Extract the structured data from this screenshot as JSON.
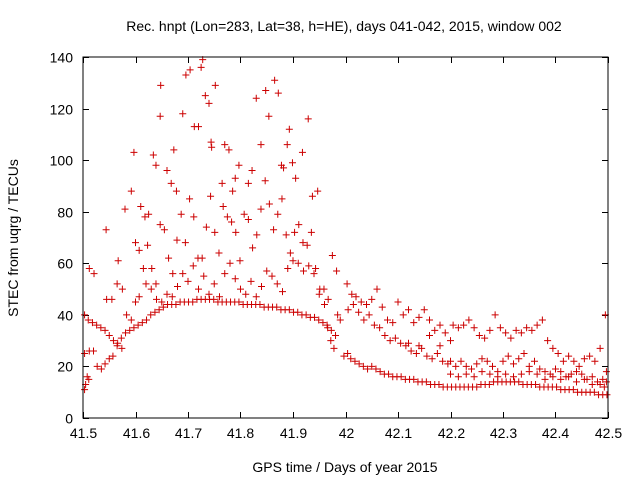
{
  "chart_data": {
    "type": "scatter",
    "title": "Rec. hnpt (Lon=283, Lat=38, h=HE), days 041-042, 2015, window 002",
    "xlabel": "GPS time / Days of year 2015",
    "ylabel": "STEC from uqrg / TECUs",
    "xlim": [
      41.5,
      42.5
    ],
    "ylim": [
      0,
      140
    ],
    "xticks": [
      41.5,
      41.6,
      41.7,
      41.8,
      41.9,
      42,
      42.1,
      42.2,
      42.3,
      42.4,
      42.5
    ],
    "xtick_labels": [
      "41.5",
      "41.6",
      "41.7",
      "41.8",
      "41.9",
      "42",
      "42.1",
      "42.2",
      "42.3",
      "42.4",
      "42.5"
    ],
    "yticks": [
      0,
      20,
      40,
      60,
      80,
      100,
      120,
      140
    ],
    "ytick_labels": [
      "0",
      "20",
      "40",
      "60",
      "80",
      "100",
      "120",
      "140"
    ],
    "grid": false,
    "legend": "none",
    "marker": "+",
    "color": "#cc0000",
    "points": [
      [
        41.503,
        11
      ],
      [
        41.505,
        13
      ],
      [
        41.508,
        16
      ],
      [
        41.511,
        15
      ],
      [
        41.503,
        25
      ],
      [
        41.512,
        26
      ],
      [
        41.52,
        26
      ],
      [
        41.527,
        20
      ],
      [
        41.535,
        19
      ],
      [
        41.542,
        21
      ],
      [
        41.55,
        23
      ],
      [
        41.557,
        24
      ],
      [
        41.565,
        28
      ],
      [
        41.573,
        31
      ],
      [
        41.581,
        33
      ],
      [
        41.589,
        34
      ],
      [
        41.597,
        35
      ],
      [
        41.605,
        36
      ],
      [
        41.613,
        37
      ],
      [
        41.621,
        38
      ],
      [
        41.629,
        40
      ],
      [
        41.637,
        41
      ],
      [
        41.645,
        42
      ],
      [
        41.653,
        43
      ],
      [
        41.661,
        44
      ],
      [
        41.669,
        44
      ],
      [
        41.677,
        44
      ],
      [
        41.685,
        45
      ],
      [
        41.693,
        45
      ],
      [
        41.701,
        45
      ],
      [
        41.709,
        45
      ],
      [
        41.717,
        46
      ],
      [
        41.725,
        46
      ],
      [
        41.733,
        46
      ],
      [
        41.741,
        46
      ],
      [
        41.749,
        46
      ],
      [
        41.757,
        45
      ],
      [
        41.765,
        45
      ],
      [
        41.773,
        45
      ],
      [
        41.781,
        45
      ],
      [
        41.789,
        45
      ],
      [
        41.797,
        45
      ],
      [
        41.805,
        44
      ],
      [
        41.813,
        44
      ],
      [
        41.821,
        44
      ],
      [
        41.829,
        44
      ],
      [
        41.837,
        44
      ],
      [
        41.845,
        43
      ],
      [
        41.853,
        43
      ],
      [
        41.861,
        43
      ],
      [
        41.869,
        43
      ],
      [
        41.877,
        42
      ],
      [
        41.885,
        42
      ],
      [
        41.893,
        42
      ],
      [
        41.901,
        41
      ],
      [
        41.909,
        41
      ],
      [
        41.917,
        40
      ],
      [
        41.925,
        40
      ],
      [
        41.933,
        39
      ],
      [
        41.941,
        39
      ],
      [
        41.949,
        38
      ],
      [
        41.957,
        37
      ],
      [
        41.965,
        36
      ],
      [
        41.973,
        34
      ],
      [
        41.981,
        32
      ],
      [
        41.503,
        40
      ],
      [
        41.51,
        38
      ],
      [
        41.518,
        37
      ],
      [
        41.526,
        36
      ],
      [
        41.534,
        35
      ],
      [
        41.542,
        34
      ],
      [
        41.55,
        32
      ],
      [
        41.558,
        30
      ],
      [
        41.566,
        29
      ],
      [
        41.574,
        27
      ],
      [
        41.512,
        58
      ],
      [
        41.521,
        56
      ],
      [
        41.545,
        46
      ],
      [
        41.555,
        46
      ],
      [
        41.565,
        52
      ],
      [
        41.575,
        50
      ],
      [
        41.583,
        40
      ],
      [
        41.592,
        38
      ],
      [
        41.6,
        45
      ],
      [
        41.607,
        47
      ],
      [
        41.544,
        73
      ],
      [
        41.567,
        61
      ],
      [
        41.58,
        81
      ],
      [
        41.592,
        88
      ],
      [
        41.597,
        103
      ],
      [
        41.61,
        82
      ],
      [
        41.618,
        78
      ],
      [
        41.625,
        79
      ],
      [
        41.634,
        102
      ],
      [
        41.639,
        98
      ],
      [
        41.647,
        117
      ],
      [
        41.648,
        129
      ],
      [
        41.66,
        96
      ],
      [
        41.668,
        91
      ],
      [
        41.673,
        104
      ],
      [
        41.678,
        88
      ],
      [
        41.69,
        118
      ],
      [
        41.696,
        133
      ],
      [
        41.704,
        135
      ],
      [
        41.712,
        113
      ],
      [
        41.72,
        113
      ],
      [
        41.725,
        136
      ],
      [
        41.728,
        139
      ],
      [
        41.733,
        125
      ],
      [
        41.74,
        122
      ],
      [
        41.744,
        107
      ],
      [
        41.745,
        105
      ],
      [
        41.752,
        129
      ],
      [
        41.765,
        91
      ],
      [
        41.77,
        106
      ],
      [
        41.778,
        104
      ],
      [
        41.785,
        88
      ],
      [
        41.79,
        93
      ],
      [
        41.797,
        98
      ],
      [
        41.815,
        91
      ],
      [
        41.822,
        96
      ],
      [
        41.83,
        124
      ],
      [
        41.839,
        106
      ],
      [
        41.848,
        127
      ],
      [
        41.854,
        117
      ],
      [
        41.865,
        131
      ],
      [
        41.872,
        126
      ],
      [
        41.878,
        98
      ],
      [
        41.882,
        97
      ],
      [
        41.889,
        106
      ],
      [
        41.893,
        112
      ],
      [
        41.899,
        99
      ],
      [
        41.905,
        93
      ],
      [
        41.918,
        103
      ],
      [
        41.929,
        116
      ],
      [
        41.937,
        86
      ],
      [
        41.947,
        88
      ],
      [
        41.6,
        68
      ],
      [
        41.607,
        65
      ],
      [
        41.615,
        58
      ],
      [
        41.623,
        67
      ],
      [
        41.631,
        58
      ],
      [
        41.639,
        52
      ],
      [
        41.647,
        75
      ],
      [
        41.655,
        73
      ],
      [
        41.663,
        62
      ],
      [
        41.671,
        56
      ],
      [
        41.679,
        69
      ],
      [
        41.687,
        79
      ],
      [
        41.695,
        68
      ],
      [
        41.703,
        85
      ],
      [
        41.711,
        78
      ],
      [
        41.719,
        62
      ],
      [
        41.727,
        62
      ],
      [
        41.735,
        74
      ],
      [
        41.743,
        86
      ],
      [
        41.751,
        72
      ],
      [
        41.759,
        64
      ],
      [
        41.767,
        82
      ],
      [
        41.775,
        78
      ],
      [
        41.783,
        76
      ],
      [
        41.791,
        72
      ],
      [
        41.799,
        61
      ],
      [
        41.807,
        79
      ],
      [
        41.815,
        77
      ],
      [
        41.823,
        66
      ],
      [
        41.831,
        71
      ],
      [
        41.839,
        81
      ],
      [
        41.847,
        92
      ],
      [
        41.855,
        83
      ],
      [
        41.863,
        73
      ],
      [
        41.871,
        79
      ],
      [
        41.879,
        85
      ],
      [
        41.887,
        71
      ],
      [
        41.895,
        64
      ],
      [
        41.903,
        72
      ],
      [
        41.911,
        75
      ],
      [
        41.919,
        68
      ],
      [
        41.927,
        67
      ],
      [
        41.935,
        72
      ],
      [
        41.943,
        58
      ],
      [
        41.951,
        50
      ],
      [
        41.959,
        50
      ],
      [
        41.967,
        46
      ],
      [
        41.975,
        63
      ],
      [
        41.983,
        57
      ],
      [
        41.62,
        52
      ],
      [
        41.63,
        50
      ],
      [
        41.64,
        46
      ],
      [
        41.65,
        45
      ],
      [
        41.66,
        48
      ],
      [
        41.67,
        47
      ],
      [
        41.68,
        51
      ],
      [
        41.69,
        56
      ],
      [
        41.7,
        53
      ],
      [
        41.71,
        59
      ],
      [
        41.72,
        50
      ],
      [
        41.73,
        55
      ],
      [
        41.74,
        48
      ],
      [
        41.75,
        52
      ],
      [
        41.76,
        47
      ],
      [
        41.77,
        56
      ],
      [
        41.78,
        60
      ],
      [
        41.79,
        54
      ],
      [
        41.8,
        50
      ],
      [
        41.81,
        48
      ],
      [
        41.82,
        53
      ],
      [
        41.83,
        47
      ],
      [
        41.84,
        51
      ],
      [
        41.85,
        57
      ],
      [
        41.86,
        55
      ],
      [
        41.87,
        52
      ],
      [
        41.88,
        49
      ],
      [
        41.89,
        58
      ],
      [
        41.9,
        61
      ],
      [
        41.91,
        60
      ],
      [
        41.92,
        57
      ],
      [
        41.93,
        59
      ],
      [
        41.94,
        56
      ],
      [
        41.95,
        48
      ],
      [
        41.96,
        44
      ],
      [
        41.966,
        35
      ],
      [
        41.972,
        30
      ],
      [
        41.978,
        27
      ],
      [
        41.985,
        40
      ],
      [
        41.99,
        38
      ],
      [
        41.997,
        24
      ],
      [
        42.004,
        25
      ],
      [
        42.01,
        23
      ],
      [
        42.018,
        22
      ],
      [
        42.026,
        21
      ],
      [
        42.034,
        20
      ],
      [
        42.042,
        19
      ],
      [
        42.05,
        20
      ],
      [
        42.058,
        19
      ],
      [
        42.066,
        18
      ],
      [
        42.074,
        17
      ],
      [
        42.082,
        17
      ],
      [
        42.09,
        16
      ],
      [
        42.098,
        16
      ],
      [
        42.106,
        16
      ],
      [
        42.114,
        15
      ],
      [
        42.122,
        15
      ],
      [
        42.13,
        15
      ],
      [
        42.138,
        14
      ],
      [
        42.146,
        14
      ],
      [
        42.154,
        14
      ],
      [
        42.162,
        13
      ],
      [
        42.17,
        13
      ],
      [
        42.178,
        13
      ],
      [
        42.186,
        12
      ],
      [
        42.194,
        12
      ],
      [
        42.202,
        12
      ],
      [
        42.21,
        12
      ],
      [
        42.218,
        12
      ],
      [
        42.226,
        12
      ],
      [
        42.234,
        12
      ],
      [
        42.242,
        12
      ],
      [
        42.25,
        12
      ],
      [
        42.258,
        13
      ],
      [
        42.266,
        13
      ],
      [
        42.274,
        13
      ],
      [
        42.282,
        14
      ],
      [
        42.29,
        14
      ],
      [
        42.298,
        14
      ],
      [
        42.306,
        14
      ],
      [
        42.314,
        14
      ],
      [
        42.322,
        14
      ],
      [
        42.33,
        14
      ],
      [
        42.338,
        13
      ],
      [
        42.346,
        13
      ],
      [
        42.354,
        13
      ],
      [
        42.362,
        13
      ],
      [
        42.37,
        12
      ],
      [
        42.378,
        12
      ],
      [
        42.386,
        12
      ],
      [
        42.394,
        12
      ],
      [
        42.402,
        12
      ],
      [
        42.41,
        11
      ],
      [
        42.418,
        11
      ],
      [
        42.426,
        11
      ],
      [
        42.434,
        11
      ],
      [
        42.442,
        10
      ],
      [
        42.45,
        10
      ],
      [
        42.458,
        10
      ],
      [
        42.466,
        10
      ],
      [
        42.474,
        10
      ],
      [
        42.482,
        9
      ],
      [
        42.49,
        9
      ],
      [
        42.498,
        9
      ],
      [
        42.005,
        42
      ],
      [
        42.012,
        48
      ],
      [
        42.02,
        47
      ],
      [
        42.03,
        45
      ],
      [
        42.04,
        44
      ],
      [
        42.05,
        46
      ],
      [
        42.06,
        50
      ],
      [
        42.07,
        43
      ],
      [
        42.08,
        38
      ],
      [
        42.09,
        37
      ],
      [
        42.1,
        45
      ],
      [
        42.11,
        40
      ],
      [
        42.12,
        42
      ],
      [
        42.13,
        37
      ],
      [
        42.14,
        39
      ],
      [
        42.15,
        42
      ],
      [
        42.16,
        38
      ],
      [
        42.17,
        34
      ],
      [
        42.18,
        36
      ],
      [
        42.19,
        33
      ],
      [
        42.003,
        52
      ],
      [
        42.015,
        44
      ],
      [
        42.025,
        41
      ],
      [
        42.035,
        38
      ],
      [
        42.045,
        40
      ],
      [
        42.055,
        36
      ],
      [
        42.065,
        35
      ],
      [
        42.075,
        32
      ],
      [
        42.085,
        30
      ],
      [
        42.095,
        31
      ],
      [
        42.105,
        29
      ],
      [
        42.115,
        28
      ],
      [
        42.125,
        26
      ],
      [
        42.135,
        25
      ],
      [
        42.145,
        27
      ],
      [
        42.155,
        24
      ],
      [
        42.165,
        23
      ],
      [
        42.175,
        25
      ],
      [
        42.185,
        22
      ],
      [
        42.195,
        21
      ],
      [
        42.205,
        36
      ],
      [
        42.215,
        35
      ],
      [
        42.225,
        36
      ],
      [
        42.235,
        38
      ],
      [
        42.245,
        35
      ],
      [
        42.255,
        32
      ],
      [
        42.265,
        31
      ],
      [
        42.275,
        34
      ],
      [
        42.285,
        40
      ],
      [
        42.295,
        35
      ],
      [
        42.305,
        33
      ],
      [
        42.315,
        31
      ],
      [
        42.325,
        34
      ],
      [
        42.335,
        33
      ],
      [
        42.345,
        35
      ],
      [
        42.355,
        34
      ],
      [
        42.365,
        36
      ],
      [
        42.375,
        38
      ],
      [
        42.385,
        30
      ],
      [
        42.395,
        27
      ],
      [
        42.405,
        25
      ],
      [
        42.415,
        22
      ],
      [
        42.425,
        24
      ],
      [
        42.435,
        22
      ],
      [
        42.445,
        20
      ],
      [
        42.455,
        23
      ],
      [
        42.465,
        24
      ],
      [
        42.475,
        22
      ],
      [
        42.485,
        27
      ],
      [
        42.495,
        40
      ],
      [
        42.2,
        22
      ],
      [
        42.21,
        20
      ],
      [
        42.22,
        22
      ],
      [
        42.23,
        20
      ],
      [
        42.24,
        19
      ],
      [
        42.25,
        21
      ],
      [
        42.26,
        23
      ],
      [
        42.27,
        22
      ],
      [
        42.28,
        20
      ],
      [
        42.29,
        18
      ],
      [
        42.3,
        22
      ],
      [
        42.31,
        24
      ],
      [
        42.32,
        21
      ],
      [
        42.33,
        23
      ],
      [
        42.34,
        25
      ],
      [
        42.35,
        20
      ],
      [
        42.36,
        22
      ],
      [
        42.37,
        19
      ],
      [
        42.38,
        18
      ],
      [
        42.39,
        17
      ],
      [
        42.4,
        19
      ],
      [
        42.41,
        18
      ],
      [
        42.42,
        16
      ],
      [
        42.43,
        17
      ],
      [
        42.44,
        18
      ],
      [
        42.45,
        17
      ],
      [
        42.46,
        15
      ],
      [
        42.47,
        16
      ],
      [
        42.48,
        14
      ],
      [
        42.49,
        15
      ],
      [
        42.2,
        17
      ],
      [
        42.215,
        16
      ],
      [
        42.23,
        17
      ],
      [
        42.245,
        16
      ],
      [
        42.26,
        18
      ],
      [
        42.275,
        17
      ],
      [
        42.29,
        16
      ],
      [
        42.305,
        17
      ],
      [
        42.32,
        16
      ],
      [
        42.335,
        17
      ],
      [
        42.35,
        18
      ],
      [
        42.365,
        17
      ],
      [
        42.38,
        15
      ],
      [
        42.395,
        16
      ],
      [
        42.41,
        15
      ],
      [
        42.425,
        16
      ],
      [
        42.44,
        14
      ],
      [
        42.455,
        15
      ],
      [
        42.47,
        13
      ],
      [
        42.485,
        13
      ],
      [
        42.497,
        18
      ],
      [
        42.497,
        14
      ],
      [
        42.493,
        12
      ],
      [
        42.12,
        29
      ],
      [
        42.14,
        28
      ],
      [
        42.16,
        32
      ],
      [
        42.18,
        28
      ],
      [
        42.2,
        30
      ]
    ]
  }
}
